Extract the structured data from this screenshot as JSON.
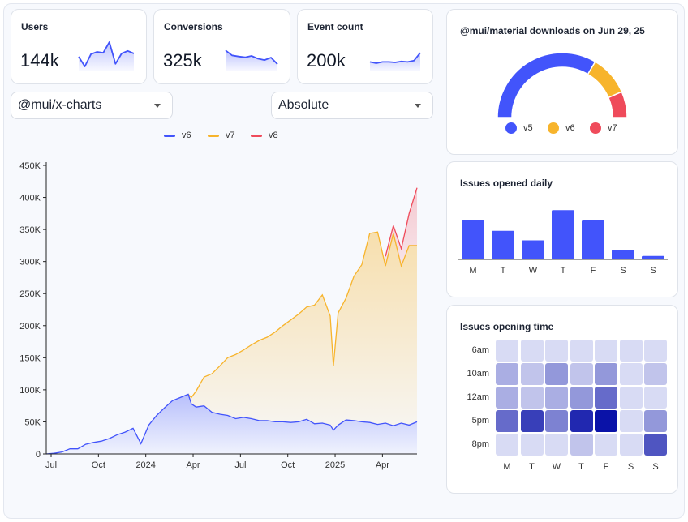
{
  "stats": [
    {
      "title": "Users",
      "value": "144k",
      "spark": [
        40,
        10,
        48,
        55,
        52,
        85,
        18,
        50,
        58,
        50
      ]
    },
    {
      "title": "Conversions",
      "value": "325k",
      "spark": [
        70,
        52,
        48,
        45,
        50,
        40,
        35,
        44,
        20
      ]
    },
    {
      "title": "Event count",
      "value": "200k",
      "spark": [
        30,
        25,
        30,
        30,
        28,
        32,
        30,
        35,
        65
      ]
    }
  ],
  "selects": {
    "package": "@mui/x-charts",
    "mode": "Absolute"
  },
  "legend_colors": {
    "v6": "#4254fb",
    "v7": "#f7b42c",
    "v8": "#ef4b5b"
  },
  "gauge_card": {
    "title": "@mui/material downloads on Jun 29, 25"
  },
  "bars_card": {
    "title": "Issues opened daily"
  },
  "heatmap_card": {
    "title": "Issues opening time"
  },
  "chart_data": [
    {
      "type": "area",
      "title": "",
      "xlabel": "",
      "ylabel": "",
      "ylim": [
        0,
        450000
      ],
      "y_ticks": [
        "0",
        "50K",
        "100K",
        "150K",
        "200K",
        "250K",
        "300K",
        "350K",
        "400K",
        "450K"
      ],
      "x_tick_labels": [
        "Jul",
        "Oct",
        "2024",
        "Apr",
        "Jul",
        "Oct",
        "2025",
        "Apr"
      ],
      "x_tick_positions": [
        0,
        3,
        6,
        9,
        12,
        15,
        18,
        21
      ],
      "x_range": [
        0,
        23.5
      ],
      "stacked": true,
      "series": [
        {
          "name": "v6",
          "x": [
            0,
            0.5,
            1,
            1.5,
            2,
            2.5,
            3,
            3.5,
            4,
            4.5,
            5,
            5.5,
            6,
            6.5,
            7,
            7.5,
            8,
            8.5,
            9,
            9.2,
            9.5,
            10,
            10.5,
            11,
            11.5,
            12,
            12.5,
            13,
            13.5,
            14,
            14.5,
            15,
            15.5,
            16,
            16.5,
            17,
            17.5,
            18,
            18.2,
            18.5,
            19,
            19.5,
            20,
            20.5,
            21,
            21.5,
            22,
            22.5,
            23,
            23.5
          ],
          "values": [
            0,
            1000,
            3000,
            8000,
            8000,
            15000,
            18000,
            20000,
            24000,
            30000,
            34000,
            40000,
            16000,
            45000,
            60000,
            72000,
            83000,
            88000,
            93000,
            78000,
            73000,
            75000,
            65000,
            62000,
            60000,
            55000,
            57000,
            55000,
            52000,
            52000,
            50000,
            50000,
            49000,
            50000,
            54000,
            47000,
            48000,
            45000,
            37000,
            45000,
            53000,
            52000,
            50000,
            49000,
            46000,
            48000,
            44000,
            48000,
            45000,
            50000
          ]
        },
        {
          "name": "v7",
          "x": [
            9,
            9.2,
            9.5,
            10,
            10.5,
            11,
            11.5,
            12,
            12.5,
            13,
            13.5,
            14,
            14.5,
            15,
            15.5,
            16,
            16.5,
            17,
            17.5,
            18,
            18.2,
            18.5,
            19,
            19.5,
            20,
            20.5,
            21,
            21.5,
            22,
            22.5,
            23,
            23.5
          ],
          "values": [
            0,
            10000,
            25000,
            45000,
            60000,
            75000,
            90000,
            100000,
            105000,
            115000,
            125000,
            130000,
            140000,
            150000,
            160000,
            168000,
            175000,
            185000,
            200000,
            170000,
            100000,
            175000,
            190000,
            225000,
            245000,
            295000,
            300000,
            245000,
            300000,
            245000,
            280000,
            275000
          ]
        },
        {
          "name": "v8",
          "x": [
            21.5,
            22,
            22.5,
            23,
            23.5
          ],
          "values": [
            15000,
            12000,
            27000,
            50000,
            90000
          ]
        }
      ]
    },
    {
      "type": "pie",
      "title": "@mui/material downloads on Jun 29, 25",
      "categories": [
        "v5",
        "v6",
        "v7"
      ],
      "values": [
        67,
        20,
        13
      ]
    },
    {
      "type": "bar",
      "title": "Issues opened daily",
      "categories": [
        "M",
        "T",
        "W",
        "T",
        "F",
        "S",
        "S"
      ],
      "values": [
        45,
        33,
        22,
        57,
        45,
        11,
        4
      ],
      "ylim": [
        0,
        60
      ]
    },
    {
      "type": "heatmap",
      "title": "Issues opening time",
      "rows": [
        "6am",
        "10am",
        "12am",
        "5pm",
        "8pm"
      ],
      "columns": [
        "M",
        "T",
        "W",
        "T",
        "F",
        "S",
        "S"
      ],
      "values": [
        [
          1,
          1,
          1,
          1,
          1,
          1,
          1
        ],
        [
          3,
          2,
          4,
          2,
          4,
          1,
          2
        ],
        [
          3,
          2,
          3,
          4,
          6,
          1,
          1
        ],
        [
          6,
          8,
          5,
          9,
          10,
          1,
          4
        ],
        [
          1,
          1,
          1,
          2,
          1,
          1,
          7
        ]
      ],
      "range": [
        0,
        10
      ]
    }
  ]
}
